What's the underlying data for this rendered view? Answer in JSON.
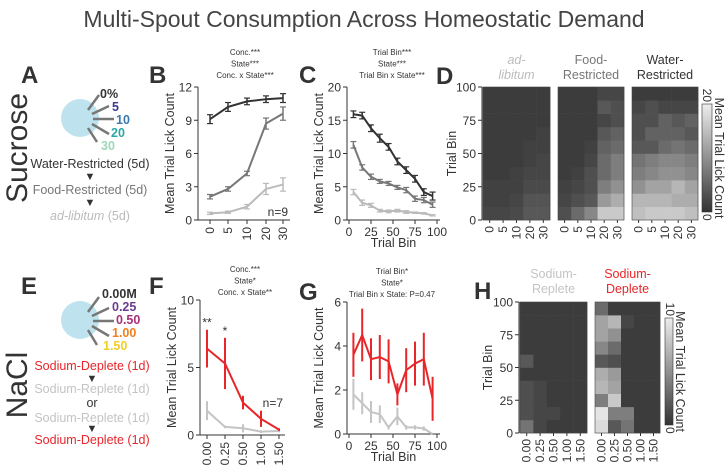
{
  "title": "Multi-Spout Consumption Across Homeostatic Demand",
  "rows": {
    "sucrose": "Sucrose",
    "nacl": "NaCl"
  },
  "panel_labels": {
    "A": "A",
    "B": "B",
    "C": "C",
    "D": "D",
    "E": "E",
    "F": "F",
    "G": "G",
    "H": "H"
  },
  "colors": {
    "water_restricted": "#333333",
    "food_restricted": "#777777",
    "ad_libitum": "#bbbbbb",
    "sodium_deplete": "#e8262a",
    "sodium_replete": "#c4c4c4",
    "spout_disc": "#bfe3ee",
    "suc_0": "#333333",
    "suc_5": "#3b3a8c",
    "suc_10": "#3a78b0",
    "suc_20": "#2aa6a6",
    "suc_30": "#9fd8b9",
    "na_000": "#333333",
    "na_025": "#6a3d8f",
    "na_050": "#a8307a",
    "na_100": "#f08020",
    "na_150": "#f0cf20"
  },
  "panelA": {
    "spouts": [
      "0%",
      "5",
      "10",
      "20",
      "30"
    ],
    "protocol": [
      "Water-Restricted (5d)",
      "Food-Restricted (5d)"
    ],
    "adlib_italic": "ad-libitum",
    "adlib_suffix": " (5d)"
  },
  "panelE": {
    "spouts": [
      "0.00M",
      "0.25",
      "0.50",
      "1.00",
      "1.50"
    ],
    "protocol": [
      "Sodium-Deplete (1d)",
      "Sodium-Replete (1d)",
      "or",
      "Sodium-Replete (1d)",
      "Sodium-Deplete (1d)"
    ]
  },
  "chart_data": [
    {
      "panel": "B",
      "type": "line",
      "stats": [
        "Conc.***",
        "State***",
        "Conc. x State***"
      ],
      "ylabel": "Mean Trial Lick Count",
      "xlabel": "",
      "categories": [
        "0",
        "5",
        "10",
        "20",
        "30"
      ],
      "category_colors": [
        "#333333",
        "#3b3a8c",
        "#3a78b0",
        "#2aa6a6",
        "#9fd8b9"
      ],
      "ylim": [
        0,
        12
      ],
      "yticks": [
        0,
        3,
        6,
        9,
        12
      ],
      "annotation": "n=9",
      "series": [
        {
          "name": "Water-Restricted",
          "color": "#333333",
          "values": [
            9.1,
            10.2,
            10.7,
            10.9,
            11.0
          ],
          "err": [
            0.4,
            0.4,
            0.3,
            0.3,
            0.4
          ]
        },
        {
          "name": "Food-Restricted",
          "color": "#777777",
          "values": [
            2.1,
            2.8,
            4.2,
            8.7,
            9.6
          ],
          "err": [
            0.2,
            0.2,
            0.2,
            0.5,
            0.6
          ]
        },
        {
          "name": "ad-libitum",
          "color": "#bbbbbb",
          "values": [
            0.6,
            0.7,
            1.2,
            2.8,
            3.2
          ],
          "err": [
            0.1,
            0.1,
            0.2,
            0.5,
            0.6
          ]
        }
      ]
    },
    {
      "panel": "C",
      "type": "line",
      "stats": [
        "Trial Bin***",
        "State***",
        "Trial Bin x State***"
      ],
      "ylabel": "Mean Trial Lick Count",
      "xlabel": "Trial Bin",
      "x": [
        5,
        15,
        25,
        35,
        45,
        55,
        65,
        75,
        85,
        95
      ],
      "xlim": [
        0,
        100
      ],
      "xticks": [
        0,
        25,
        50,
        75,
        100
      ],
      "ylim": [
        0,
        20
      ],
      "yticks": [
        0,
        5,
        10,
        15,
        20
      ],
      "series": [
        {
          "name": "Water-Restricted",
          "color": "#333333",
          "values": [
            15.9,
            15.7,
            13.8,
            12.3,
            11.0,
            8.8,
            7.5,
            6.2,
            4.2,
            3.6
          ],
          "err": [
            0.5,
            0.5,
            0.5,
            0.6,
            0.5,
            0.5,
            0.5,
            0.5,
            0.5,
            0.6
          ]
        },
        {
          "name": "Food-Restricted",
          "color": "#777777",
          "values": [
            11.3,
            7.9,
            6.5,
            5.8,
            5.5,
            4.9,
            4.5,
            3.2,
            3.0,
            2.3
          ],
          "err": [
            0.5,
            0.4,
            0.4,
            0.3,
            0.3,
            0.3,
            0.4,
            0.4,
            0.4,
            0.4
          ]
        },
        {
          "name": "ad-libitum",
          "color": "#bbbbbb",
          "values": [
            4.2,
            2.6,
            2.2,
            1.4,
            1.3,
            1.4,
            1.2,
            1.1,
            1.0,
            0.7
          ],
          "err": [
            0.4,
            0.4,
            0.3,
            0.2,
            0.2,
            0.2,
            0.2,
            0.1,
            0.1,
            0.1
          ]
        }
      ]
    },
    {
      "panel": "D",
      "type": "heatmap",
      "ylabel": "Trial Bin",
      "yticks": [
        0,
        25,
        50,
        75,
        100
      ],
      "categories": [
        "0",
        "5",
        "10",
        "20",
        "30"
      ],
      "category_colors": [
        "#333333",
        "#3b3a8c",
        "#3a78b0",
        "#2aa6a6",
        "#9fd8b9"
      ],
      "colorbar": {
        "label": "Mean Trial Lick Count",
        "min": 0,
        "max": 20,
        "min_label": "0",
        "max_label": "20"
      },
      "row_order": "bin 5 (bottom) to bin 95 (top)",
      "maps": [
        {
          "title": [
            "ad-",
            "libitum"
          ],
          "title_color": "#bbbbbb",
          "italic": true,
          "rows": [
            [
              2,
              2,
              2.5,
              4,
              4
            ],
            [
              1.5,
              1.5,
              2,
              3.5,
              3.5
            ],
            [
              1.5,
              1.5,
              1.5,
              2.5,
              2.5
            ],
            [
              1,
              1,
              1.5,
              2,
              2
            ],
            [
              1,
              1,
              1,
              1.5,
              2
            ],
            [
              1,
              1,
              1,
              1.5,
              1.5
            ],
            [
              1,
              1,
              1,
              1,
              1.5
            ],
            [
              1,
              1,
              1,
              1,
              1
            ],
            [
              1,
              1,
              1,
              1,
              1
            ],
            [
              1,
              1,
              1,
              1,
              1
            ]
          ]
        },
        {
          "title": [
            "Food-",
            "Restricted"
          ],
          "title_color": "#777777",
          "italic": false,
          "rows": [
            [
              3,
              6,
              9,
              16,
              16
            ],
            [
              2,
              3,
              4,
              11,
              13
            ],
            [
              1.5,
              2,
              3,
              8,
              10
            ],
            [
              1,
              1.5,
              3,
              6,
              8
            ],
            [
              1,
              1,
              2,
              6,
              8
            ],
            [
              1,
              1,
              1.5,
              5,
              6
            ],
            [
              1,
              1,
              1,
              4,
              5
            ],
            [
              1,
              1,
              1,
              2,
              3
            ],
            [
              1,
              1,
              1,
              4,
              3
            ],
            [
              1,
              1,
              1,
              2,
              2
            ]
          ]
        },
        {
          "title": [
            "Water-",
            "Restricted"
          ],
          "title_color": "#333333",
          "italic": false,
          "rows": [
            [
              15,
              16,
              16,
              16,
              15
            ],
            [
              14,
              14,
              14,
              13,
              13
            ],
            [
              10,
              12,
              12,
              14,
              12
            ],
            [
              8,
              9,
              10,
              10,
              9
            ],
            [
              7,
              8,
              9,
              9,
              8
            ],
            [
              4,
              4,
              6,
              7,
              6
            ],
            [
              3,
              5,
              5,
              5,
              4
            ],
            [
              3,
              3,
              5,
              4,
              5
            ],
            [
              2,
              3,
              2,
              2,
              2
            ],
            [
              1,
              1,
              1,
              1,
              1
            ]
          ]
        }
      ]
    },
    {
      "panel": "F",
      "type": "line",
      "stats": [
        "Conc.***",
        "State*",
        "Conc. x State**"
      ],
      "ylabel": "Mean Trial Lick Count",
      "xlabel": "",
      "categories": [
        "0.00",
        "0.25",
        "0.50",
        "1.00",
        "1.50"
      ],
      "category_colors": [
        "#333333",
        "#6a3d8f",
        "#a8307a",
        "#f08020",
        "#f0cf20"
      ],
      "ylim": [
        0,
        10
      ],
      "yticks": [
        0,
        5,
        10
      ],
      "annotation": "n=7",
      "significance": [
        "**",
        "*",
        "",
        "",
        ""
      ],
      "series": [
        {
          "name": "Sodium-Deplete",
          "color": "#e8262a",
          "values": [
            6.4,
            5.3,
            2.4,
            1.2,
            0.4
          ],
          "err": [
            1.4,
            1.9,
            0.5,
            0.6,
            0.1
          ]
        },
        {
          "name": "Sodium-Replete",
          "color": "#c4c4c4",
          "values": [
            1.8,
            0.6,
            0.5,
            0.25,
            0.3
          ],
          "err": [
            0.7,
            0.1,
            0.3,
            0.1,
            0.1
          ]
        }
      ]
    },
    {
      "panel": "G",
      "type": "line",
      "stats": [
        "Trial Bin*",
        "State*",
        "Trial Bin x State: P=0.47"
      ],
      "ylabel": "Mean Trial Lick Count",
      "xlabel": "Trial Bin",
      "x": [
        5,
        15,
        25,
        35,
        45,
        55,
        65,
        75,
        85,
        95
      ],
      "xlim": [
        0,
        100
      ],
      "xticks": [
        0,
        25,
        50,
        75,
        100
      ],
      "ylim": [
        0,
        6
      ],
      "yticks": [
        0,
        2,
        4,
        6
      ],
      "series": [
        {
          "name": "Sodium-Deplete",
          "color": "#e8262a",
          "values": [
            3.6,
            4.5,
            3.4,
            3.5,
            3.3,
            1.8,
            2.9,
            3.2,
            3.4,
            1.6
          ],
          "err": [
            1.0,
            1.2,
            0.95,
            1.0,
            1.0,
            0.5,
            1.0,
            1.0,
            1.2,
            1.0
          ]
        },
        {
          "name": "Sodium-Replete",
          "color": "#c4c4c4",
          "values": [
            1.8,
            1.4,
            1.0,
            0.9,
            0.3,
            0.8,
            0.3,
            0.3,
            0.25,
            0.0
          ],
          "err": [
            0.7,
            0.5,
            0.5,
            0.4,
            0.1,
            0.4,
            0.1,
            0.1,
            0.1,
            0.0
          ]
        }
      ]
    },
    {
      "panel": "H",
      "type": "heatmap",
      "ylabel": "Trial Bin",
      "yticks": [
        0,
        25,
        50,
        75,
        100
      ],
      "categories": [
        "0.00",
        "0.25",
        "0.50",
        "1.00",
        "1.50"
      ],
      "category_colors": [
        "#333333",
        "#6a3d8f",
        "#a8307a",
        "#f08020",
        "#f0cf20"
      ],
      "colorbar": {
        "label": "Mean Trial Lick Count",
        "min": 0,
        "max": 10,
        "min_label": "0",
        "max_label": "10"
      },
      "row_order": "bin 5 (bottom) to bin 95 (top)",
      "maps": [
        {
          "title": [
            "Sodium-",
            "Replete"
          ],
          "title_color": "#c4c4c4",
          "italic": false,
          "rows": [
            [
              3.5,
              1,
              0.5,
              0.5,
              0.5
            ],
            [
              1.5,
              1,
              1,
              0.5,
              0.5
            ],
            [
              1.5,
              1,
              0.5,
              0.5,
              0.5
            ],
            [
              1.5,
              1,
              0.5,
              0.5,
              0.5
            ],
            [
              0.5,
              0.5,
              0.5,
              0.5,
              0.5
            ],
            [
              2,
              0.5,
              0.5,
              0.5,
              0.5
            ],
            [
              0.5,
              0.5,
              0.5,
              0.5,
              0.5
            ],
            [
              0.5,
              0.5,
              0.5,
              0.5,
              0.5
            ],
            [
              0.5,
              0.5,
              0.5,
              0.5,
              0.5
            ],
            [
              0.5,
              0.5,
              0.5,
              0.5,
              0.5
            ]
          ]
        },
        {
          "title": [
            "Sodium-",
            "Deplete"
          ],
          "title_color": "#e8262a",
          "italic": false,
          "rows": [
            [
              9,
              2,
              3.5,
              0.5,
              0.5
            ],
            [
              9.5,
              4,
              4,
              0.5,
              0.5
            ],
            [
              4,
              8,
              0.5,
              0.5,
              0.5
            ],
            [
              7,
              6,
              0.5,
              0.5,
              0.5
            ],
            [
              6.5,
              5.5,
              0.5,
              0.5,
              0.5
            ],
            [
              2,
              1.5,
              0.5,
              0.5,
              0.5
            ],
            [
              4.5,
              3,
              0.5,
              0.5,
              0.5
            ],
            [
              6,
              5,
              0.5,
              0.5,
              0.5
            ],
            [
              6,
              7,
              1,
              0.5,
              0.5
            ],
            [
              3,
              0.5,
              0.5,
              0.5,
              0.5
            ]
          ]
        }
      ]
    }
  ]
}
